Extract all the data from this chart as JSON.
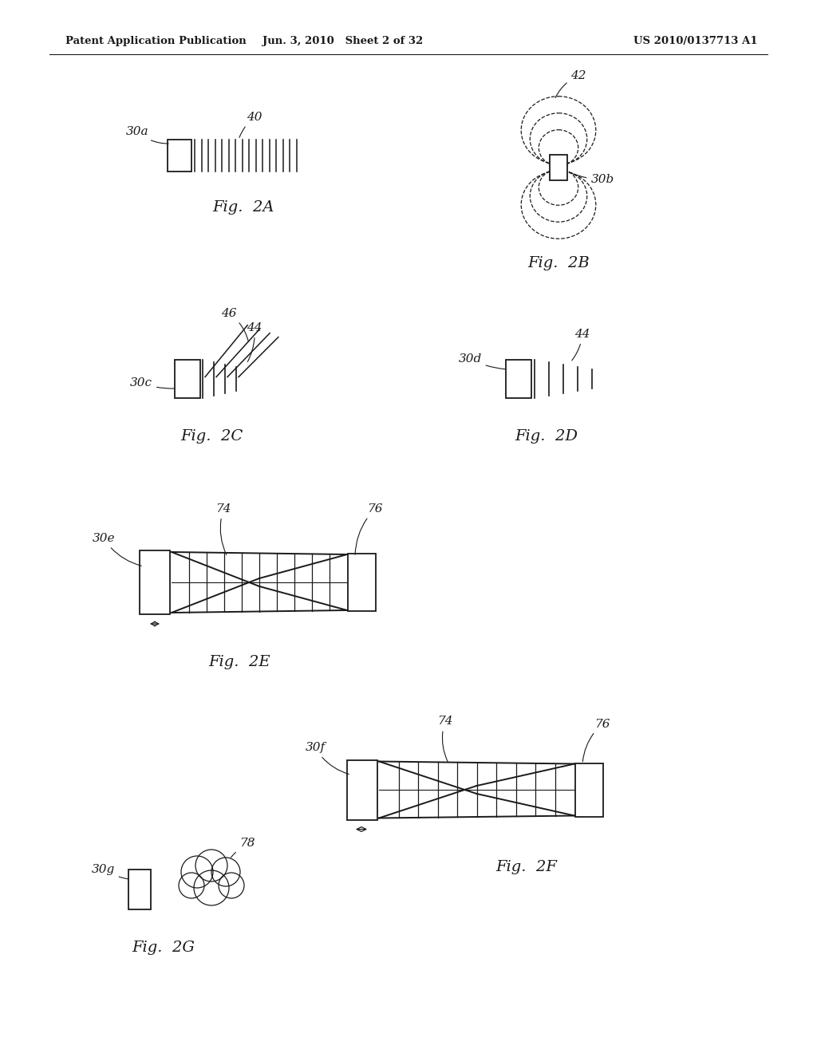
{
  "background_color": "#ffffff",
  "header_left": "Patent Application Publication",
  "header_center": "Jun. 3, 2010   Sheet 2 of 32",
  "header_right": "US 2010/0137713 A1"
}
